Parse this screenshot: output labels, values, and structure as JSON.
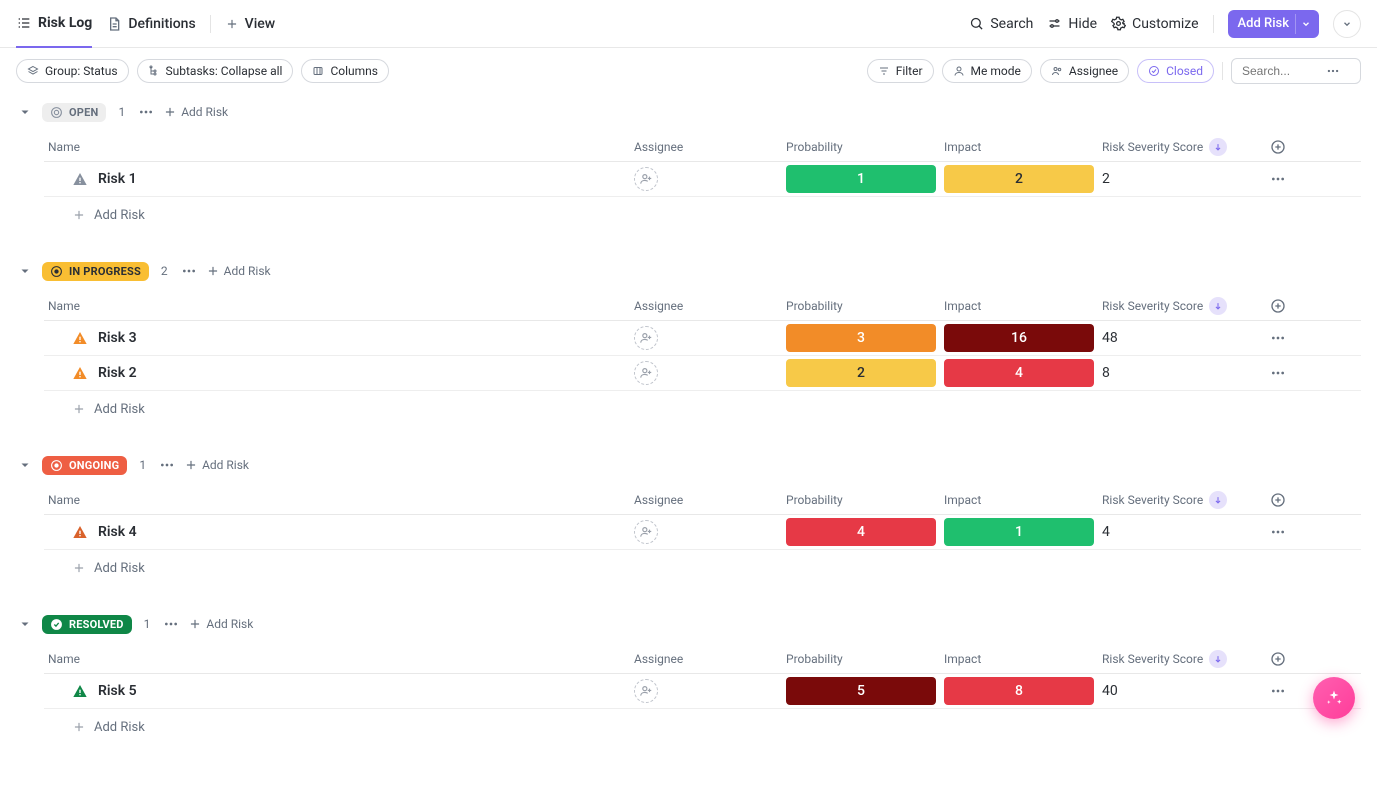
{
  "topbar": {
    "tabs": {
      "risk_log": "Risk Log",
      "definitions": "Definitions",
      "view": "View"
    },
    "tools": {
      "search": "Search",
      "hide": "Hide",
      "customize": "Customize"
    },
    "add_button": "Add Risk"
  },
  "optionsbar": {
    "left": {
      "group": "Group: Status",
      "subtasks": "Subtasks: Collapse all",
      "columns": "Columns"
    },
    "right": {
      "filter": "Filter",
      "me_mode": "Me mode",
      "assignee": "Assignee",
      "closed": "Closed",
      "search_placeholder": "Search..."
    }
  },
  "columns": {
    "name": "Name",
    "assignee": "Assignee",
    "probability": "Probability",
    "impact": "Impact",
    "score": "Risk Severity Score"
  },
  "add_risk_label": "Add Risk",
  "metric_colors": {
    "1": "#1fbf6e",
    "2": "#f7c948",
    "3": "#f28c28",
    "4": "#e63946",
    "5": "#7a0a0a",
    "8": "#e63946",
    "16": "#7a0a0a"
  },
  "metric_text_colors": {
    "1": "#ffffff",
    "2": "#2a2e34",
    "3": "#ffffff",
    "4": "#ffffff",
    "5": "#ffffff",
    "8": "#ffffff",
    "16": "#ffffff"
  },
  "groups": [
    {
      "key": "open",
      "label": "OPEN",
      "count": "1",
      "pill_class": "open",
      "icon": "circle-outline",
      "icon_color": "#87909e",
      "rows": [
        {
          "name": "Risk 1",
          "tri": "tri-grey",
          "probability": "1",
          "impact": "2",
          "score": "2"
        }
      ]
    },
    {
      "key": "in_progress",
      "label": "IN PROGRESS",
      "count": "2",
      "pill_class": "inprog",
      "icon": "circle-dot",
      "icon_color": "#2a2e34",
      "rows": [
        {
          "name": "Risk 3",
          "tri": "tri-orange",
          "probability": "3",
          "impact": "16",
          "score": "48"
        },
        {
          "name": "Risk 2",
          "tri": "tri-orange",
          "probability": "2",
          "impact": "4",
          "score": "8"
        }
      ]
    },
    {
      "key": "ongoing",
      "label": "ONGOING",
      "count": "1",
      "pill_class": "ongoing",
      "icon": "circle-dot",
      "icon_color": "#ffffff",
      "rows": [
        {
          "name": "Risk 4",
          "tri": "tri-darkor",
          "probability": "4",
          "impact": "1",
          "score": "4"
        }
      ]
    },
    {
      "key": "resolved",
      "label": "RESOLVED",
      "count": "1",
      "pill_class": "resolved",
      "icon": "check-circle",
      "icon_color": "#ffffff",
      "rows": [
        {
          "name": "Risk 5",
          "tri": "tri-green",
          "probability": "5",
          "impact": "8",
          "score": "40"
        }
      ]
    }
  ]
}
